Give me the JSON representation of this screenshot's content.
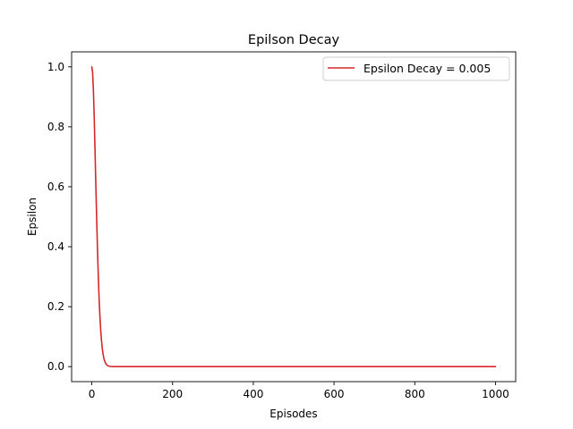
{
  "chart_data": {
    "type": "line",
    "title": "Epilson Decay",
    "xlabel": "Episodes",
    "ylabel": "Epsilon",
    "xlim": [
      -50,
      1050
    ],
    "ylim": [
      -0.05,
      1.05
    ],
    "xticks": [
      0,
      200,
      400,
      600,
      800,
      1000
    ],
    "yticks": [
      0.0,
      0.2,
      0.4,
      0.6,
      0.8,
      1.0
    ],
    "xtick_labels": [
      "0",
      "200",
      "400",
      "600",
      "800",
      "1000"
    ],
    "ytick_labels": [
      "0.0",
      "0.2",
      "0.4",
      "0.6",
      "0.8",
      "1.0"
    ],
    "grid": false,
    "legend_position": "top-right",
    "series": [
      {
        "name": "Epsilon Decay = 0.005",
        "color": "#d62728",
        "x": [
          0,
          2,
          4,
          6,
          8,
          10,
          12,
          14,
          16,
          18,
          20,
          22,
          24,
          26,
          28,
          30,
          32,
          34,
          36,
          38,
          40,
          42,
          44,
          46,
          48,
          50,
          55,
          60,
          70,
          80,
          100,
          150,
          200,
          300,
          400,
          500,
          600,
          700,
          800,
          900,
          1000
        ],
        "y": [
          1.0,
          0.98,
          0.92,
          0.83,
          0.72,
          0.605,
          0.495,
          0.395,
          0.305,
          0.23,
          0.17,
          0.123,
          0.087,
          0.06,
          0.041,
          0.027,
          0.018,
          0.012,
          0.0075,
          0.0047,
          0.0029,
          0.0018,
          0.0011,
          0.0007,
          0.0004,
          0.0003,
          0.0001,
          0.0,
          0.0,
          0.0,
          0.0,
          0.0,
          0.0,
          0.0,
          0.0,
          0.0,
          0.0,
          0.0,
          0.0,
          0.0,
          0.0
        ]
      }
    ]
  }
}
